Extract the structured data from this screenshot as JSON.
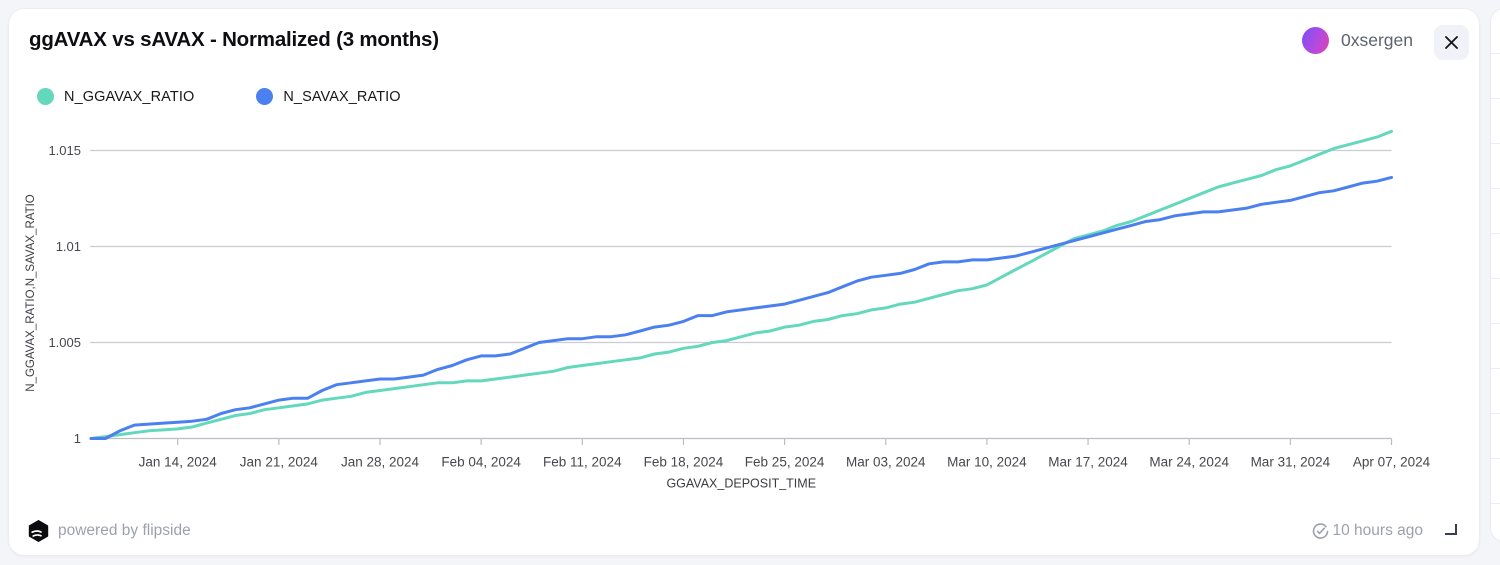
{
  "header": {
    "title": "ggAVAX vs sAVAX - Normalized (3 months)",
    "user_name": "0xsergen"
  },
  "legend": [
    {
      "label": "N_GGAVAX_RATIO",
      "color": "#63d8bd"
    },
    {
      "label": "N_SAVAX_RATIO",
      "color": "#4b80f0"
    }
  ],
  "footer": {
    "powered_by": "powered by flipside",
    "updated": "10 hours ago"
  },
  "colors": {
    "grid": "#cbcbd1",
    "baseline": "#bcbcc3",
    "tick_text": "#47474d",
    "axis_text": "#3c3c42",
    "teal": "#63d8bd",
    "blue": "#4b80f0"
  },
  "chart_data": {
    "type": "line",
    "title": "ggAVAX vs sAVAX - Normalized (3 months)",
    "xlabel": "GGAVAX_DEPOSIT_TIME",
    "ylabel": "N_GGAVAX_RATIO,N_SAVAX_RATIO",
    "grid": "horizontal",
    "legend_position": "top-left",
    "x_is_daily_from": "Jan 08, 2024",
    "xlim": [
      0,
      90
    ],
    "ylim": [
      1.0,
      1.0165
    ],
    "x_ticks": [
      {
        "d": 6,
        "label": "Jan 14, 2024"
      },
      {
        "d": 13,
        "label": "Jan 21, 2024"
      },
      {
        "d": 20,
        "label": "Jan 28, 2024"
      },
      {
        "d": 27,
        "label": "Feb 04, 2024"
      },
      {
        "d": 34,
        "label": "Feb 11, 2024"
      },
      {
        "d": 41,
        "label": "Feb 18, 2024"
      },
      {
        "d": 48,
        "label": "Feb 25, 2024"
      },
      {
        "d": 55,
        "label": "Mar 03, 2024"
      },
      {
        "d": 62,
        "label": "Mar 10, 2024"
      },
      {
        "d": 69,
        "label": "Mar 17, 2024"
      },
      {
        "d": 76,
        "label": "Mar 24, 2024"
      },
      {
        "d": 83,
        "label": "Mar 31, 2024"
      },
      {
        "d": 90,
        "label": "Apr 07, 2024"
      }
    ],
    "y_ticks": [
      {
        "v": 1.0,
        "label": "1"
      },
      {
        "v": 1.005,
        "label": "1.005"
      },
      {
        "v": 1.01,
        "label": "1.01"
      },
      {
        "v": 1.015,
        "label": "1.015"
      }
    ],
    "series": [
      {
        "name": "N_GGAVAX_RATIO",
        "color": "#63d8bd",
        "values": [
          1.0,
          1.0001,
          1.0002,
          1.0003,
          1.0004,
          1.00045,
          1.0005,
          1.0006,
          1.0008,
          1.001,
          1.0012,
          1.0013,
          1.0015,
          1.0016,
          1.0017,
          1.0018,
          1.002,
          1.0021,
          1.0022,
          1.0024,
          1.0025,
          1.0026,
          1.0027,
          1.0028,
          1.0029,
          1.0029,
          1.003,
          1.003,
          1.0031,
          1.0032,
          1.0033,
          1.0034,
          1.0035,
          1.0037,
          1.0038,
          1.0039,
          1.004,
          1.0041,
          1.0042,
          1.0044,
          1.0045,
          1.0047,
          1.0048,
          1.005,
          1.0051,
          1.0053,
          1.0055,
          1.0056,
          1.0058,
          1.0059,
          1.0061,
          1.0062,
          1.0064,
          1.0065,
          1.0067,
          1.0068,
          1.007,
          1.0071,
          1.0073,
          1.0075,
          1.0077,
          1.0078,
          1.008,
          1.0084,
          1.0088,
          1.0092,
          1.0096,
          1.01,
          1.0104,
          1.0106,
          1.0108,
          1.0111,
          1.0113,
          1.0116,
          1.0119,
          1.0122,
          1.0125,
          1.0128,
          1.0131,
          1.0133,
          1.0135,
          1.0137,
          1.014,
          1.0142,
          1.0145,
          1.0148,
          1.0151,
          1.0153,
          1.0155,
          1.0157,
          1.016
        ]
      },
      {
        "name": "N_SAVAX_RATIO",
        "color": "#4b80f0",
        "values": [
          1.0,
          1.0,
          1.0004,
          1.0007,
          1.00075,
          1.0008,
          1.00085,
          1.0009,
          1.001,
          1.0013,
          1.0015,
          1.0016,
          1.0018,
          1.002,
          1.0021,
          1.0021,
          1.0025,
          1.0028,
          1.0029,
          1.003,
          1.0031,
          1.0031,
          1.0032,
          1.0033,
          1.0036,
          1.0038,
          1.0041,
          1.0043,
          1.0043,
          1.0044,
          1.0047,
          1.005,
          1.0051,
          1.0052,
          1.0052,
          1.0053,
          1.0053,
          1.0054,
          1.0056,
          1.0058,
          1.0059,
          1.0061,
          1.0064,
          1.0064,
          1.0066,
          1.0067,
          1.0068,
          1.0069,
          1.007,
          1.0072,
          1.0074,
          1.0076,
          1.0079,
          1.0082,
          1.0084,
          1.0085,
          1.0086,
          1.0088,
          1.0091,
          1.0092,
          1.0092,
          1.0093,
          1.0093,
          1.0094,
          1.0095,
          1.0097,
          1.0099,
          1.0101,
          1.0103,
          1.0105,
          1.0107,
          1.0109,
          1.0111,
          1.0113,
          1.0114,
          1.0116,
          1.0117,
          1.0118,
          1.0118,
          1.0119,
          1.012,
          1.0122,
          1.0123,
          1.0124,
          1.0126,
          1.0128,
          1.0129,
          1.0131,
          1.0133,
          1.0134,
          1.0136
        ]
      }
    ]
  }
}
